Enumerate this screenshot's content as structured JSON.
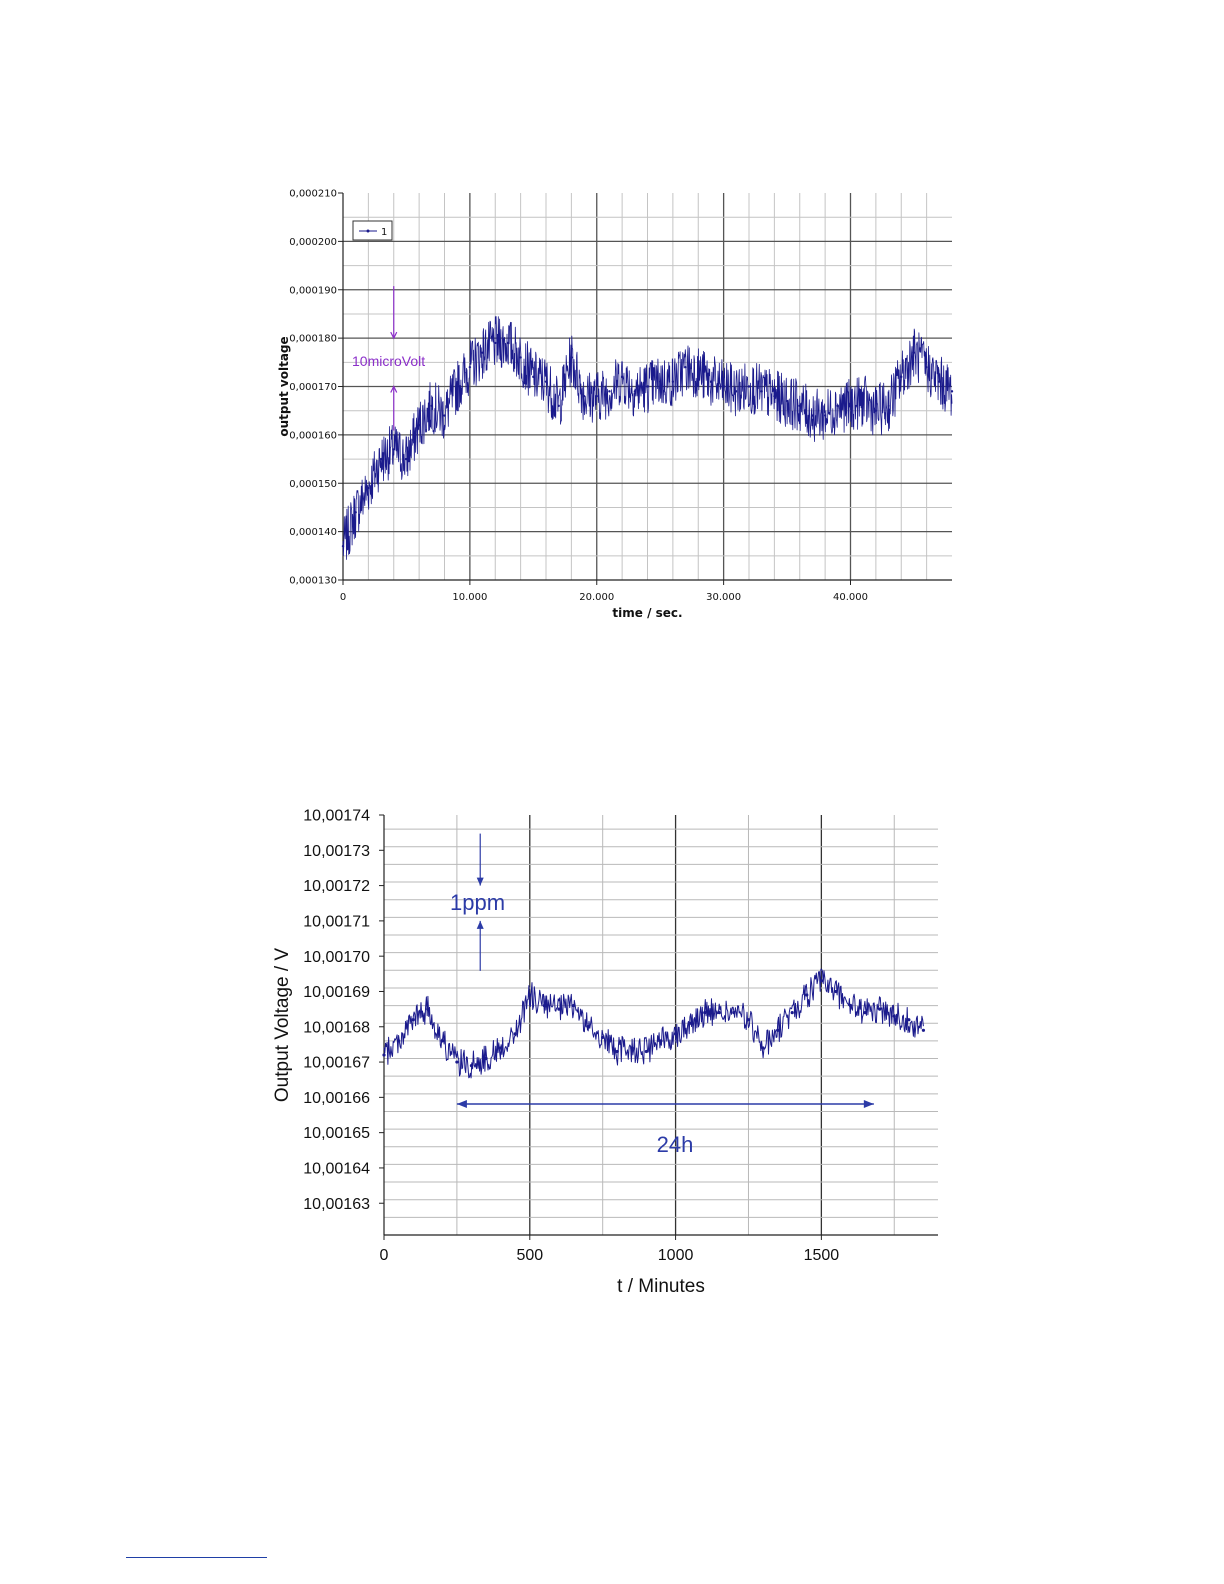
{
  "chart_data": [
    {
      "type": "line",
      "title": "",
      "xlabel": "time / sec.",
      "ylabel": "output voltage",
      "xlim": [
        0,
        48000
      ],
      "ylim": [
        0.00013,
        0.00021
      ],
      "x_ticks": [
        0,
        10000,
        20000,
        30000,
        40000
      ],
      "x_tick_labels": [
        "0",
        "10.000",
        "20.000",
        "30.000",
        "40.000"
      ],
      "y_ticks": [
        0.00013,
        0.00014,
        0.00015,
        0.00016,
        0.00017,
        0.00018,
        0.00019,
        0.0002,
        0.00021
      ],
      "y_tick_labels": [
        "0,000130",
        "0,000140",
        "0,000150",
        "0,000160",
        "0,000170",
        "0,000180",
        "0,000190",
        "0,000200",
        "0,000210"
      ],
      "grid": true,
      "legend": "top-left",
      "series": [
        {
          "name": "1",
          "color": "#1a1a8c",
          "marker": "dot",
          "x": [
            0,
            1000,
            2000,
            3000,
            4000,
            5000,
            6000,
            7000,
            8000,
            9000,
            10000,
            11000,
            12000,
            13000,
            14000,
            15000,
            16000,
            17000,
            18000,
            19000,
            20000,
            21000,
            22000,
            23000,
            24000,
            25000,
            26000,
            27000,
            28000,
            29000,
            30000,
            31000,
            32000,
            33000,
            34000,
            35000,
            36000,
            37000,
            38000,
            39000,
            40000,
            41000,
            42000,
            43000,
            44000,
            45000,
            46000,
            47000,
            48000
          ],
          "y": [
            0.000137,
            0.000144,
            0.000149,
            0.000155,
            0.000157,
            0.000155,
            0.000162,
            0.000166,
            0.000164,
            0.00017,
            0.000174,
            0.000177,
            0.000179,
            0.000179,
            0.000176,
            0.000172,
            0.000171,
            0.000166,
            0.000176,
            0.000168,
            0.000168,
            0.000169,
            0.000172,
            0.000169,
            0.00017,
            0.000171,
            0.000171,
            0.000174,
            0.000173,
            0.000171,
            0.00017,
            0.000169,
            0.00017,
            0.000169,
            0.000168,
            0.000167,
            0.000166,
            0.000164,
            0.000164,
            0.000166,
            0.000166,
            0.000167,
            0.000165,
            0.000166,
            0.000172,
            0.000177,
            0.000174,
            0.000171,
            0.000169
          ]
        }
      ],
      "annotations": [
        {
          "text": "10microVolt",
          "color": "#8b2fc9",
          "x": 4000,
          "y_range": [
            0.00017,
            0.00018
          ]
        }
      ]
    },
    {
      "type": "line",
      "title": "",
      "xlabel": "t / Minutes",
      "ylabel": "Output Voltage / V",
      "xlim": [
        0,
        1900
      ],
      "ylim": [
        10.001621,
        10.00174
      ],
      "x_ticks": [
        0,
        500,
        1000,
        1500
      ],
      "x_tick_labels": [
        "0",
        "500",
        "1000",
        "1500"
      ],
      "y_ticks": [
        10.00163,
        10.00164,
        10.00165,
        10.00166,
        10.00167,
        10.00168,
        10.00169,
        10.0017,
        10.00171,
        10.00172,
        10.00173,
        10.00174
      ],
      "y_tick_labels": [
        "10,00163",
        "10,00164",
        "10,00165",
        "10,00166",
        "10,00167",
        "10,00168",
        "10,00169",
        "10,00170",
        "10,00171",
        "10,00172",
        "10,00173",
        "10,00174"
      ],
      "grid": true,
      "series": [
        {
          "color": "#1a1a8c",
          "marker": "dot",
          "x": [
            0,
            50,
            100,
            150,
            200,
            250,
            300,
            350,
            400,
            450,
            500,
            550,
            600,
            650,
            700,
            750,
            800,
            850,
            900,
            950,
            1000,
            1050,
            1100,
            1150,
            1200,
            1250,
            1300,
            1350,
            1400,
            1450,
            1500,
            1550,
            1600,
            1650,
            1700,
            1750,
            1800,
            1850
          ],
          "y": [
            10.001672,
            10.001676,
            10.001682,
            10.001685,
            10.001676,
            10.00167,
            10.001669,
            10.001671,
            10.001674,
            10.001678,
            10.001689,
            10.001686,
            10.001685,
            10.001686,
            10.00168,
            10.001677,
            10.001673,
            10.001674,
            10.001673,
            10.001676,
            10.001678,
            10.001681,
            10.001684,
            10.001684,
            10.001684,
            10.001682,
            10.001674,
            10.001679,
            10.001684,
            10.001689,
            10.001693,
            10.00169,
            10.001686,
            10.001684,
            10.001685,
            10.001683,
            10.001682,
            10.001679
          ]
        }
      ],
      "annotations": [
        {
          "text": "1ppm",
          "color": "#2c3ba7",
          "x": 330,
          "y_range": [
            10.00171,
            10.00172
          ]
        },
        {
          "text": "24h",
          "color": "#2c3ba7",
          "x_range": [
            250,
            1680
          ],
          "y": 10.001659
        }
      ]
    }
  ]
}
